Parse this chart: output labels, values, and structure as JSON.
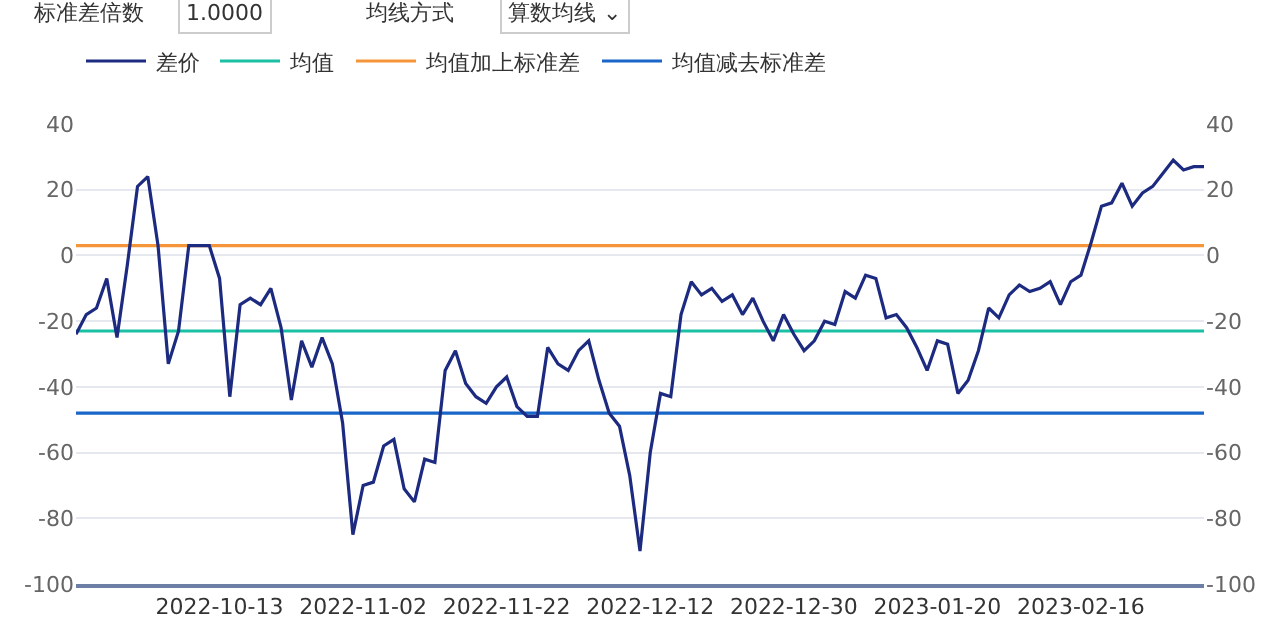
{
  "chart_data": {
    "type": "line",
    "annotations": [
      "标准差倍数",
      "1.0000",
      "均线方式",
      "算数均线 ⌄"
    ],
    "categories": [
      null,
      null,
      null,
      null,
      null,
      null,
      null,
      null,
      null,
      null,
      null,
      null,
      null,
      null,
      "2022-10-13",
      null,
      null,
      null,
      null,
      null,
      null,
      null,
      null,
      null,
      null,
      null,
      null,
      null,
      "2022-11-02",
      null,
      null,
      null,
      null,
      null,
      null,
      null,
      null,
      null,
      null,
      null,
      null,
      null,
      "2022-11-22",
      null,
      null,
      null,
      null,
      null,
      null,
      null,
      null,
      null,
      null,
      null,
      null,
      null,
      "2022-12-12",
      null,
      null,
      null,
      null,
      null,
      null,
      null,
      null,
      null,
      null,
      null,
      null,
      null,
      "2022-12-30",
      null,
      null,
      null,
      null,
      null,
      null,
      null,
      null,
      null,
      null,
      null,
      null,
      null,
      "2023-01-20",
      null,
      null,
      null,
      null,
      null,
      null,
      null,
      null,
      null,
      null,
      null,
      null,
      null,
      "2023-02-16",
      null,
      null,
      null,
      null,
      null,
      null,
      null,
      null,
      null,
      null,
      null,
      null
    ],
    "series": [
      {
        "name": "差价",
        "color": "#1c2a80",
        "values": [
          -24,
          -18,
          -16,
          -7,
          -25,
          -3,
          21,
          24,
          3,
          -33,
          -23,
          3,
          3,
          3,
          -7,
          -43,
          -15,
          -13,
          -15,
          -10,
          -22,
          -44,
          -26,
          -34,
          -25,
          -33,
          -51,
          -85,
          -70,
          -69,
          -58,
          -56,
          -71,
          -75,
          -62,
          -63,
          -35,
          -29,
          -39,
          -43,
          -45,
          -40,
          -37,
          -46,
          -49,
          -49,
          -28,
          -33,
          -35,
          -29,
          -26,
          -38,
          -48,
          -52,
          -67,
          -90,
          -60,
          -42,
          -43,
          -18,
          -8,
          -12,
          -10,
          -14,
          -12,
          -18,
          -13,
          -20,
          -26,
          -18,
          -24,
          -29,
          -26,
          -20,
          -21,
          -11,
          -13,
          -6,
          -7,
          -19,
          -18,
          -22,
          -28,
          -35,
          -26,
          -27,
          -42,
          -38,
          -29,
          -16,
          -19,
          -12,
          -9,
          -11,
          -10,
          -8,
          -15,
          -8,
          -6,
          4,
          15,
          16,
          22,
          15,
          19,
          21,
          25,
          29,
          26,
          27,
          27
        ]
      },
      {
        "name": "均值",
        "color": "#1bbfa4",
        "values": [
          -23,
          -23,
          -23,
          -23,
          -23,
          -23,
          -23,
          -23,
          -23,
          -23,
          -23,
          -23,
          -23,
          -23,
          -23,
          -23,
          -23,
          -23,
          -23,
          -23,
          -23,
          -23,
          -23,
          -23,
          -23,
          -23,
          -23,
          -23,
          -23,
          -23,
          -23,
          -23,
          -23,
          -23,
          -23,
          -23,
          -23,
          -23,
          -23,
          -23,
          -23,
          -23,
          -23,
          -23,
          -23,
          -23,
          -23,
          -23,
          -23,
          -23,
          -23,
          -23,
          -23,
          -23,
          -23,
          -23,
          -23,
          -23,
          -23,
          -23,
          -23,
          -23,
          -23,
          -23,
          -23,
          -23,
          -23,
          -23,
          -23,
          -23,
          -23,
          -23,
          -23,
          -23,
          -23,
          -23,
          -23,
          -23,
          -23,
          -23,
          -23,
          -23,
          -23,
          -23,
          -23,
          -23,
          -23,
          -23,
          -23,
          -23,
          -23,
          -23,
          -23,
          -23,
          -23,
          -23,
          -23,
          -23,
          -23,
          -23,
          -23,
          -23,
          -23,
          -23,
          -23,
          -23,
          -23,
          -23,
          -23,
          -23,
          -23
        ]
      },
      {
        "name": "均值加上标准差",
        "color": "#f5953a",
        "values": [
          3,
          3,
          3,
          3,
          3,
          3,
          3,
          3,
          3,
          3,
          3,
          3,
          3,
          3,
          3,
          3,
          3,
          3,
          3,
          3,
          3,
          3,
          3,
          3,
          3,
          3,
          3,
          3,
          3,
          3,
          3,
          3,
          3,
          3,
          3,
          3,
          3,
          3,
          3,
          3,
          3,
          3,
          3,
          3,
          3,
          3,
          3,
          3,
          3,
          3,
          3,
          3,
          3,
          3,
          3,
          3,
          3,
          3,
          3,
          3,
          3,
          3,
          3,
          3,
          3,
          3,
          3,
          3,
          3,
          3,
          3,
          3,
          3,
          3,
          3,
          3,
          3,
          3,
          3,
          3,
          3,
          3,
          3,
          3,
          3,
          3,
          3,
          3,
          3,
          3,
          3,
          3,
          3,
          3,
          3,
          3,
          3,
          3,
          3,
          3,
          3,
          3,
          3,
          3,
          3,
          3,
          3,
          3,
          3,
          3,
          3
        ]
      },
      {
        "name": "均值减去标准差",
        "color": "#1a66c8",
        "values": [
          -48,
          -48,
          -48,
          -48,
          -48,
          -48,
          -48,
          -48,
          -48,
          -48,
          -48,
          -48,
          -48,
          -48,
          -48,
          -48,
          -48,
          -48,
          -48,
          -48,
          -48,
          -48,
          -48,
          -48,
          -48,
          -48,
          -48,
          -48,
          -48,
          -48,
          -48,
          -48,
          -48,
          -48,
          -48,
          -48,
          -48,
          -48,
          -48,
          -48,
          -48,
          -48,
          -48,
          -48,
          -48,
          -48,
          -48,
          -48,
          -48,
          -48,
          -48,
          -48,
          -48,
          -48,
          -48,
          -48,
          -48,
          -48,
          -48,
          -48,
          -48,
          -48,
          -48,
          -48,
          -48,
          -48,
          -48,
          -48,
          -48,
          -48,
          -48,
          -48,
          -48,
          -48,
          -48,
          -48,
          -48,
          -48,
          -48,
          -48,
          -48,
          -48,
          -48,
          -48,
          -48,
          -48,
          -48,
          -48,
          -48,
          -48,
          -48,
          -48,
          -48,
          -48,
          -48,
          -48,
          -48,
          -48,
          -48,
          -48,
          -48,
          -48,
          -48,
          -48,
          -48,
          -48,
          -48,
          -48,
          -48,
          -48,
          -48
        ]
      }
    ],
    "ylim": [
      -100,
      40
    ],
    "yticks": [
      -100,
      -80,
      -60,
      -40,
      -20,
      0,
      20,
      40
    ],
    "y2lim": [
      -100,
      40
    ],
    "y2ticks": [
      -100,
      -80,
      -60,
      -40,
      -20,
      0,
      20,
      40
    ],
    "grid": "y",
    "legend": "top left",
    "marker": "none",
    "line_style": "solid"
  }
}
